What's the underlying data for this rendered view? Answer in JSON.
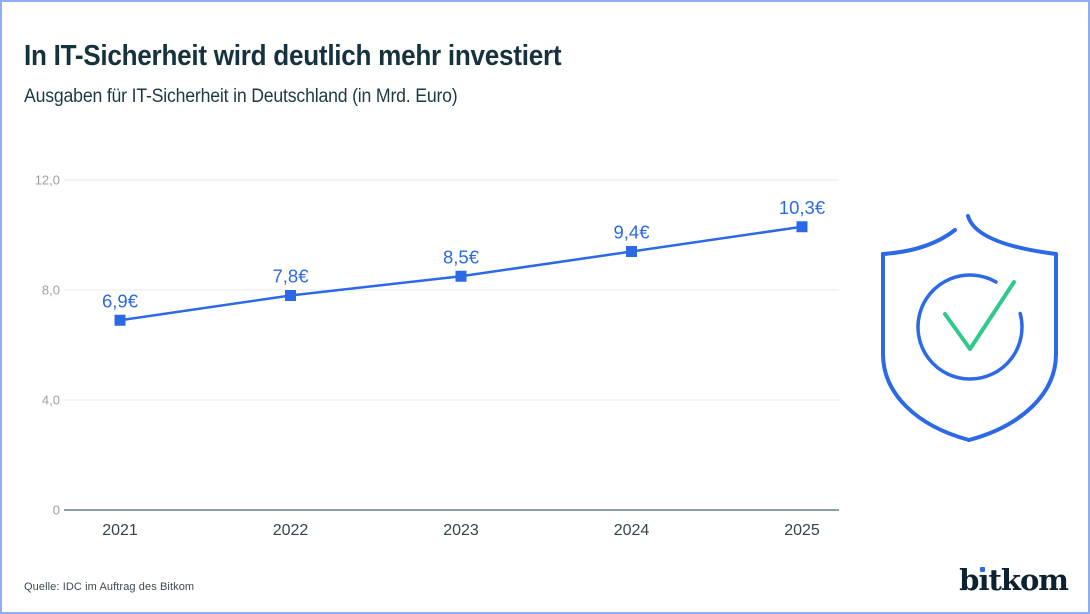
{
  "page": {
    "border_color": "#8fadf2",
    "background": "#ffffff"
  },
  "header": {
    "title": "In IT-Sicherheit wird deutlich mehr investiert",
    "subtitle": "Ausgaben für IT-Sicherheit in Deutschland (in Mrd. Euro)",
    "title_color": "#16323f"
  },
  "chart_data": {
    "type": "line",
    "title": "In IT-Sicherheit wird deutlich mehr investiert",
    "subtitle": "Ausgaben für IT-Sicherheit in Deutschland (in Mrd. Euro)",
    "categories": [
      "2021",
      "2022",
      "2023",
      "2024",
      "2025"
    ],
    "values": [
      6.9,
      7.8,
      8.5,
      9.4,
      10.3
    ],
    "point_labels": [
      "6,9€",
      "7,8€",
      "8,5€",
      "9,4€",
      "10,3€"
    ],
    "ylim": [
      0,
      12
    ],
    "yticks": [
      0,
      4,
      8,
      12
    ],
    "ytick_labels": [
      "0",
      "4,0",
      "8,0",
      "12,0"
    ],
    "xlabel": "",
    "ylabel": "",
    "legend": "none",
    "grid": "horizontal",
    "marker": "square",
    "line_color": "#2c69e6",
    "gridline_color": "#e9eaeb",
    "baseline_color": "#8ba1a9",
    "tick_label_color": "#9aa1a5",
    "x_label_color": "#34444d"
  },
  "icon": {
    "name": "shield-check-icon",
    "shield_color": "#2c69e6",
    "check_color": "#2fc98c"
  },
  "footer": {
    "source": "Quelle: IDC im Auftrag des Bitkom",
    "logo": {
      "alt": "bitkom",
      "part1": "b",
      "part2": "ı",
      "part3": "tkom",
      "dot_color": "#2c69e6",
      "text_color": "#0c2230"
    }
  }
}
